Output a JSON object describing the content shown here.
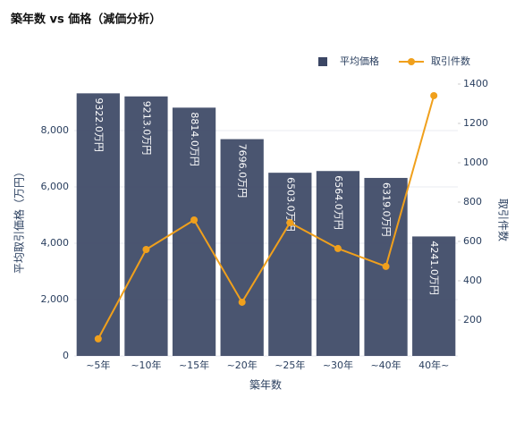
{
  "chart_data": {
    "type": "combo",
    "title": "築年数 vs 価格（減価分析）",
    "x_label": "築年数",
    "y_label": "平均取引価格（万円）",
    "y2_label": "取引件数",
    "categories": [
      "~5年",
      "~10年",
      "~15年",
      "~20年",
      "~25年",
      "~30年",
      "~40年",
      "40年~"
    ],
    "series": [
      {
        "name": "平均価格",
        "type": "bar",
        "axis": "y",
        "color": "#3b4664",
        "values": [
          9322,
          9213,
          8814,
          7696,
          6503,
          6564,
          6319,
          4241
        ],
        "value_labels": [
          "9322.0万円",
          "9213.0万円",
          "8814.0万円",
          "7696.0万円",
          "6503.0万円",
          "6564.0万円",
          "6319.0万円",
          "4241.0万円"
        ]
      },
      {
        "name": "取引件数",
        "type": "line",
        "axis": "y2",
        "color": "#f0a01c",
        "values": [
          105,
          559,
          709,
          291,
          695,
          564,
          473,
          1341
        ]
      }
    ],
    "ylim": [
      0,
      9651
    ],
    "yticks": [
      0,
      {
        "value": 2000,
        "label": "2,000"
      },
      {
        "value": 4000,
        "label": "4,000"
      },
      {
        "value": 6000,
        "label": "6,000"
      },
      {
        "value": 8000,
        "label": "8,000"
      }
    ],
    "y2lim": [
      18,
      1400
    ],
    "y2ticks": [
      200,
      400,
      600,
      800,
      1000,
      1200,
      1400
    ],
    "grid": true,
    "legend": "top-right"
  }
}
